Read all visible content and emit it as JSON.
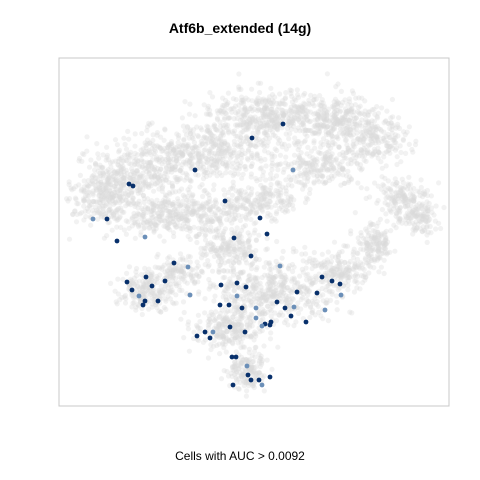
{
  "chart_data": {
    "type": "scatter",
    "title": "Atf6b_extended (14g)",
    "xlabel": "Cells with AUC > 0.0092",
    "ylabel": "",
    "grid": false,
    "legend": "none",
    "colors": {
      "background_cells": "#d9d9d9",
      "highlighted_cells": "#08306b",
      "highlighted_cells_light": "#6b8fb8",
      "frame": "#c8c8c8"
    },
    "series": [
      {
        "name": "",
        "role": "highlighted",
        "points": [
          [
            283,
            124
          ],
          [
            252,
            138
          ],
          [
            195,
            170
          ],
          [
            293,
            170
          ],
          [
            129,
            184
          ],
          [
            133,
            186
          ],
          [
            225,
            201
          ],
          [
            93,
            219
          ],
          [
            107,
            219
          ],
          [
            260,
            218
          ],
          [
            117,
            241
          ],
          [
            145,
            237
          ],
          [
            234,
            238
          ],
          [
            267,
            234
          ],
          [
            174,
            263
          ],
          [
            188,
            267
          ],
          [
            146,
            277
          ],
          [
            165,
            281
          ],
          [
            251,
            256
          ],
          [
            280,
            266
          ],
          [
            127,
            282
          ],
          [
            132,
            290
          ],
          [
            152,
            286
          ],
          [
            139,
            296
          ],
          [
            145,
            301
          ],
          [
            158,
            301
          ],
          [
            143,
            305
          ],
          [
            190,
            295
          ],
          [
            221,
            285
          ],
          [
            237,
            283
          ],
          [
            246,
            287
          ],
          [
            237,
            296
          ],
          [
            220,
            305
          ],
          [
            229,
            305
          ],
          [
            242,
            308
          ],
          [
            256,
            308
          ],
          [
            277,
            302
          ],
          [
            271,
            322
          ],
          [
            285,
            308
          ],
          [
            294,
            307
          ],
          [
            322,
            277
          ],
          [
            332,
            281
          ],
          [
            340,
            284
          ],
          [
            341,
            295
          ],
          [
            317,
            293
          ],
          [
            297,
            292
          ],
          [
            306,
            322
          ],
          [
            325,
            310
          ],
          [
            230,
            327
          ],
          [
            265,
            324
          ],
          [
            270,
            325
          ],
          [
            262,
            326
          ],
          [
            197,
            336
          ],
          [
            205,
            332
          ],
          [
            210,
            338
          ],
          [
            213,
            332
          ],
          [
            245,
            332
          ],
          [
            232,
            357
          ],
          [
            236,
            357
          ],
          [
            247,
            366
          ],
          [
            248,
            375
          ],
          [
            251,
            380
          ],
          [
            259,
            380
          ],
          [
            262,
            385
          ],
          [
            270,
            377
          ],
          [
            233,
            385
          ],
          [
            291,
            316
          ],
          [
            256,
            318
          ]
        ]
      }
    ]
  },
  "labels": {
    "title": "Atf6b_extended (14g)",
    "caption": "Cells with AUC > 0.0092"
  }
}
